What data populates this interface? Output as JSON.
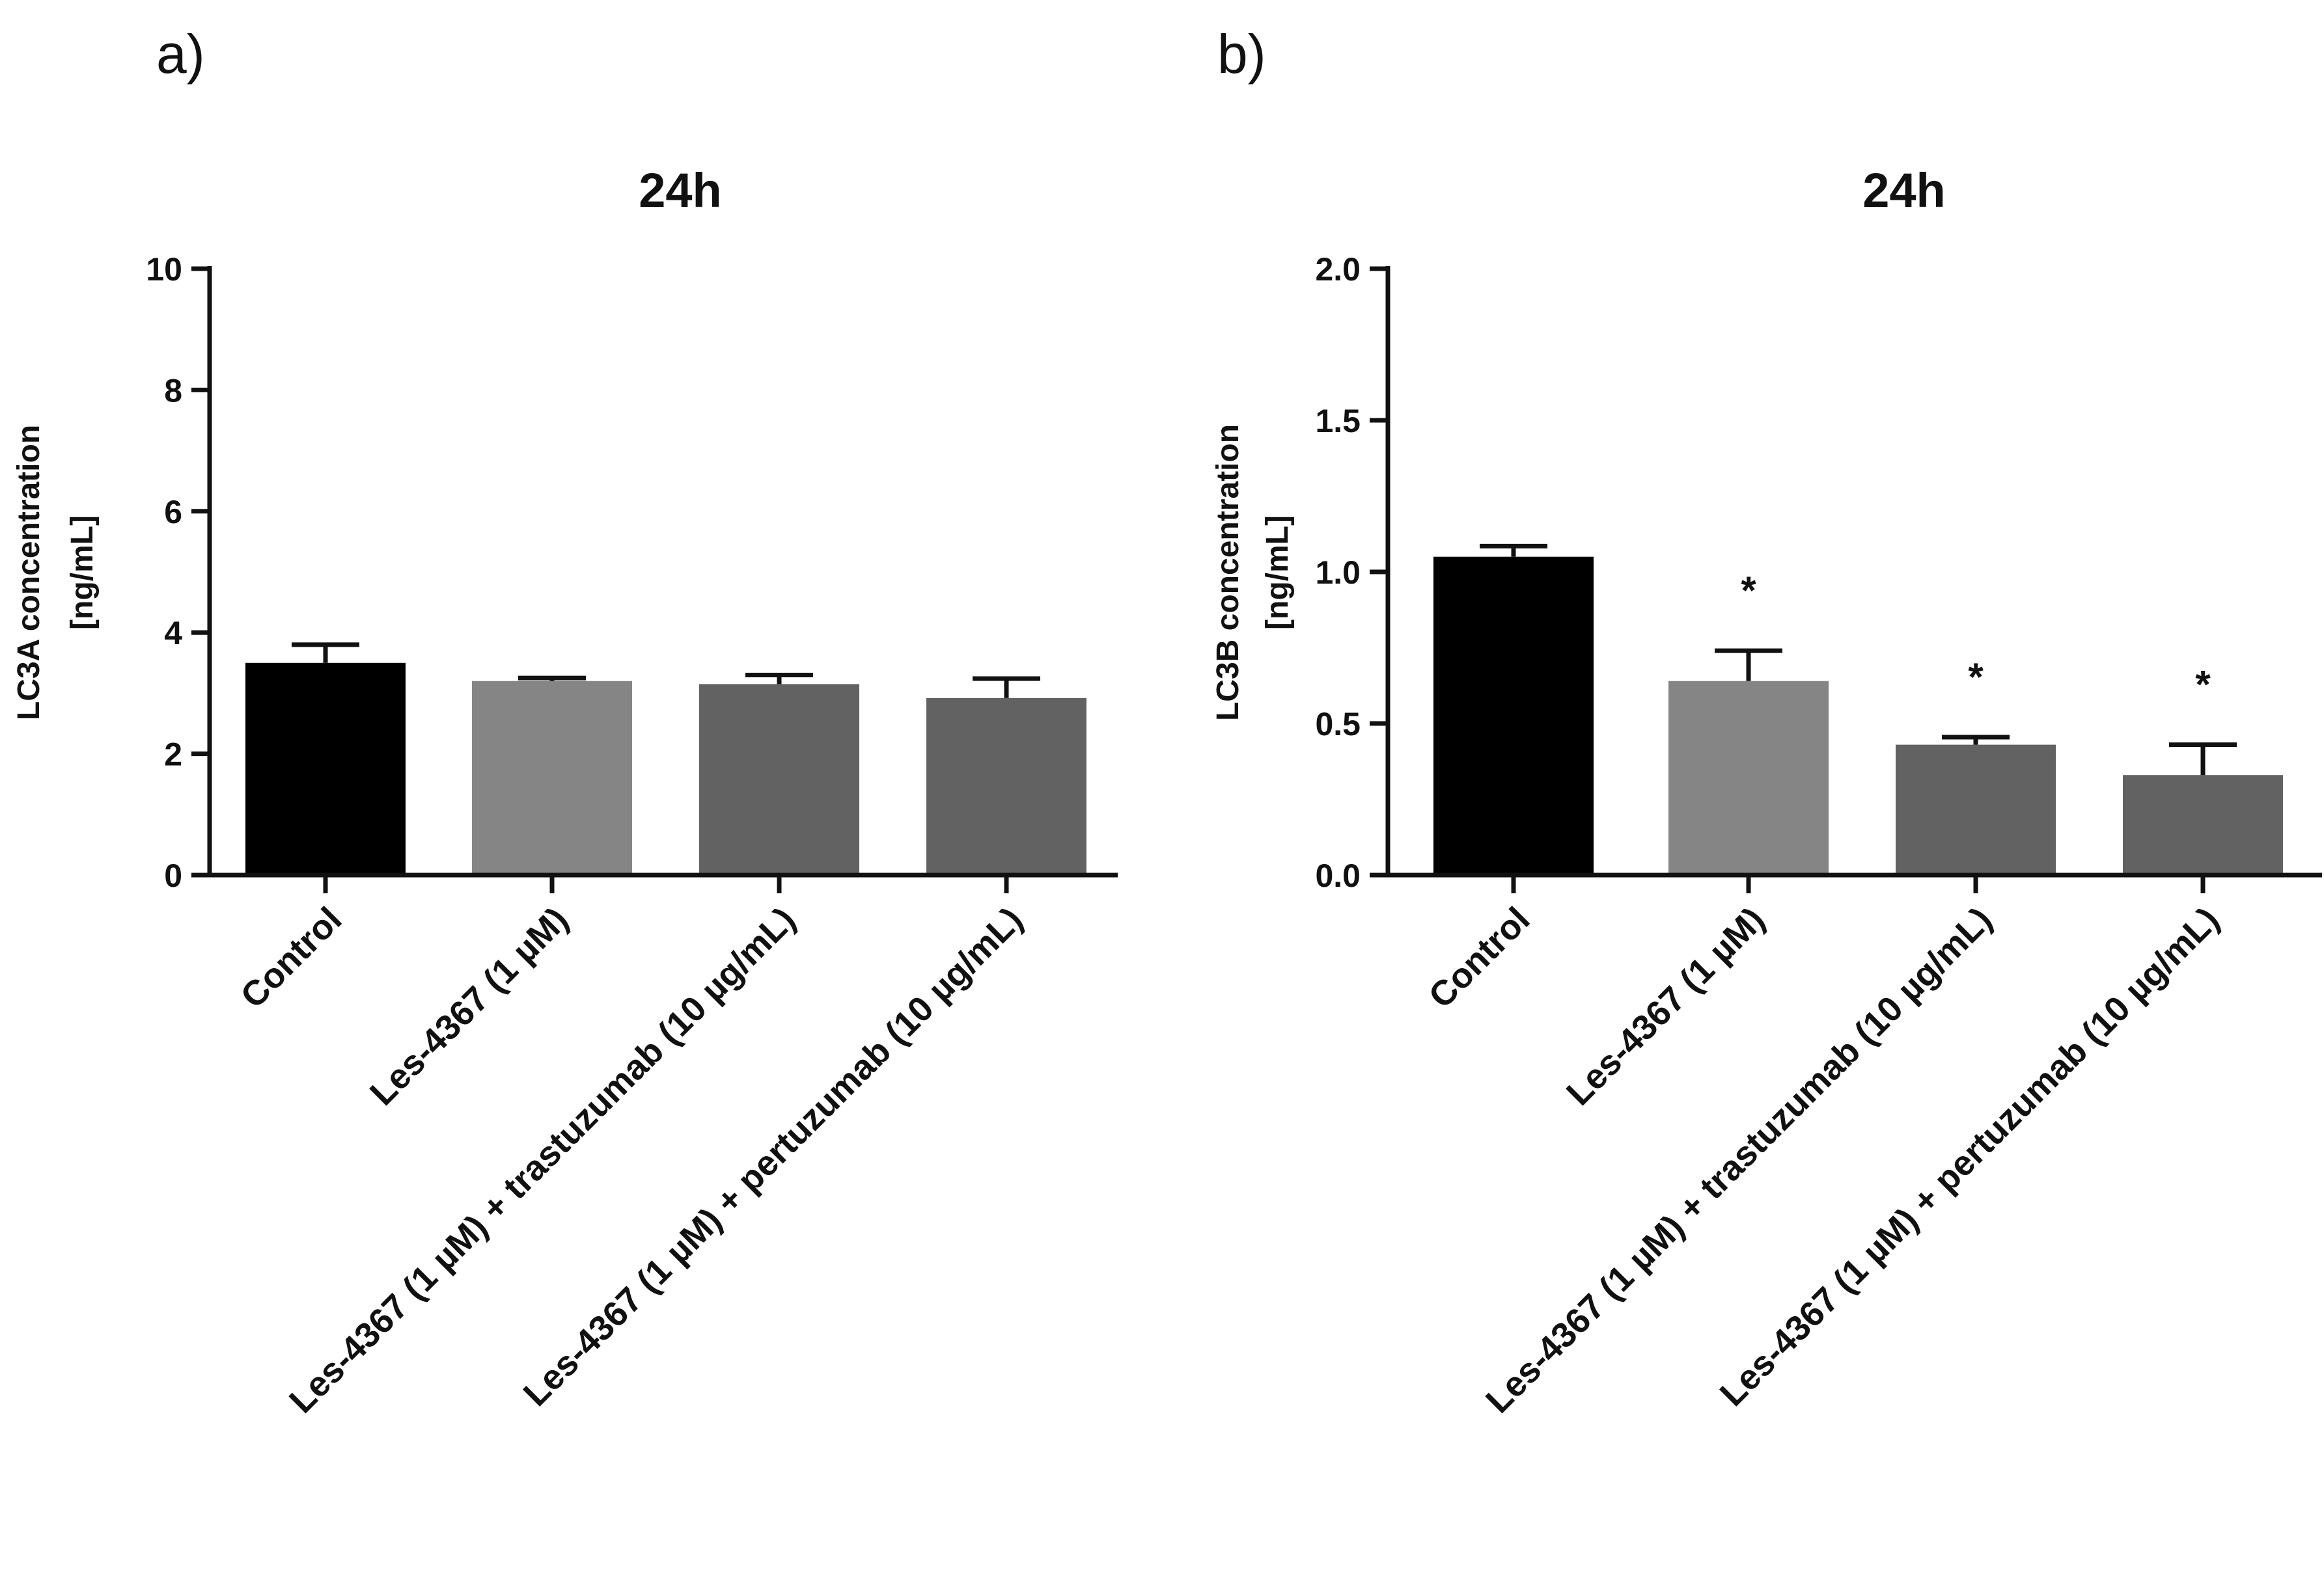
{
  "chart_data": [
    {
      "panel_label": "a)",
      "type": "bar",
      "title": "24h",
      "ylabel_line1": "LC3A concentration",
      "ylabel_line2": "[ng/mL]",
      "xlabel": "",
      "ylim": [
        0,
        10
      ],
      "yticks": [
        0,
        2,
        4,
        6,
        8,
        10
      ],
      "ytick_labels": [
        "0",
        "2",
        "4",
        "6",
        "8",
        "10"
      ],
      "categories": [
        "Control",
        "Les-4367 (1 µM)",
        "Les-4367 (1 µM) + trastuzumab (10 µg/mL)",
        "Les-4367 (1 µM) + pertuzumab (10 µg/mL)"
      ],
      "values": [
        3.5,
        3.2,
        3.15,
        2.92
      ],
      "errors": [
        0.3,
        0.05,
        0.15,
        0.32
      ],
      "annotations": [
        "",
        "",
        "",
        ""
      ],
      "bar_colors": [
        "#000000",
        "#858585",
        "#626262",
        "#626262"
      ],
      "grid": false
    },
    {
      "panel_label": "b)",
      "type": "bar",
      "title": "24h",
      "ylabel_line1": "LC3B concentration",
      "ylabel_line2": "[ng/mL]",
      "xlabel": "",
      "ylim": [
        0,
        2.0
      ],
      "yticks": [
        0,
        0.5,
        1.0,
        1.5,
        2.0
      ],
      "ytick_labels": [
        "0.0",
        "0.5",
        "1.0",
        "1.5",
        "2.0"
      ],
      "categories": [
        "Control",
        "Les-4367 (1 µM)",
        "Les-4367 (1 µM) + trastuzumab (10 µg/mL)",
        "Les-4367 (1 µM) + pertuzumab (10 µg/mL)"
      ],
      "values": [
        1.05,
        0.64,
        0.43,
        0.33
      ],
      "errors": [
        0.035,
        0.1,
        0.025,
        0.1
      ],
      "annotations": [
        "",
        "*",
        "*",
        "*"
      ],
      "bar_colors": [
        "#000000",
        "#858585",
        "#626262",
        "#626262"
      ],
      "grid": false
    }
  ]
}
